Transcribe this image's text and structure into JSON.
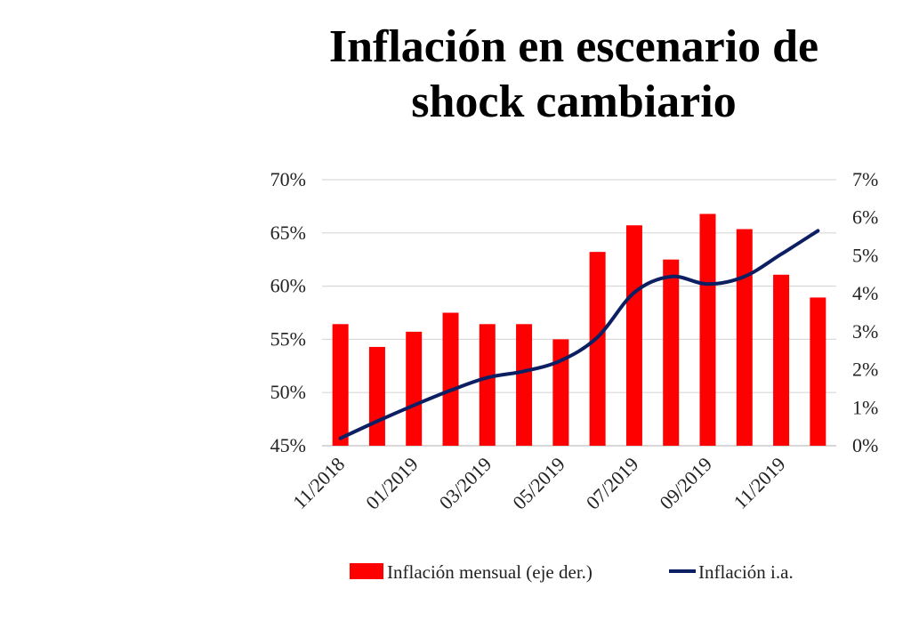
{
  "chart_data": {
    "type": "bar+line",
    "title": "Inflación en escenario de shock cambiario",
    "categories": [
      "11/2018",
      "12/2018",
      "01/2019",
      "02/2019",
      "03/2019",
      "04/2019",
      "05/2019",
      "06/2019",
      "07/2019",
      "08/2019",
      "09/2019",
      "10/2019",
      "11/2019",
      "12/2019"
    ],
    "x_tick_labels": [
      "11/2018",
      "01/2019",
      "03/2019",
      "05/2019",
      "07/2019",
      "09/2019",
      "11/2019"
    ],
    "series": [
      {
        "name": "Inflación mensual (eje der.)",
        "kind": "bar",
        "axis": "right",
        "color": "#ff0000",
        "values": [
          3.2,
          2.6,
          3.0,
          3.5,
          3.2,
          3.2,
          2.8,
          5.1,
          5.8,
          4.9,
          6.1,
          5.7,
          4.5,
          3.9
        ]
      },
      {
        "name": "Inflación i.a.",
        "kind": "line",
        "axis": "left",
        "color": "#0d1f63",
        "values": [
          45.7,
          47.3,
          48.8,
          50.2,
          51.4,
          52.0,
          53.0,
          55.2,
          59.4,
          60.9,
          60.2,
          60.9,
          63.0,
          65.2
        ]
      }
    ],
    "y_left": {
      "ylim": [
        45,
        70
      ],
      "ticks": [
        "45%",
        "50%",
        "55%",
        "60%",
        "65%",
        "70%"
      ]
    },
    "y_right": {
      "ylim": [
        0,
        7
      ],
      "ticks": [
        "0%",
        "1%",
        "2%",
        "3%",
        "4%",
        "5%",
        "6%",
        "7%"
      ]
    },
    "grid": true,
    "legend": "bottom"
  }
}
